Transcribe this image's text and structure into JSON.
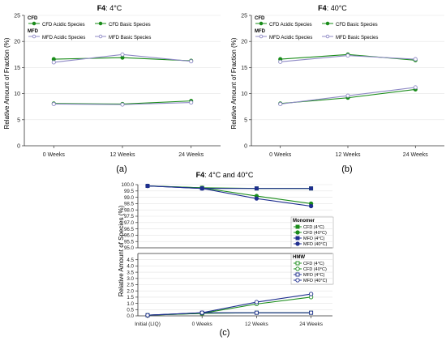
{
  "colors": {
    "green": "#1a8c1a",
    "navy": "#1f2f8f",
    "lavender": "#8f8ac6",
    "axis": "#333333",
    "grid": "#e3e3e3"
  },
  "chart_data": [
    {
      "type": "line",
      "title_bold": "F4",
      "title_rest": ": 4°C",
      "ylabel": "Relative Amount of Fraction (%)",
      "categories": [
        "0 Weeks",
        "12 Weeks",
        "24 Weeks"
      ],
      "ylim": [
        0,
        25
      ],
      "yticks": [
        "0",
        "5",
        "10",
        "15",
        "20",
        "25"
      ],
      "caption": "(a)",
      "legend_groups": [
        {
          "header": "CFD",
          "items": [
            "CFD Acidic Species",
            "CFD Basic Species"
          ]
        },
        {
          "header": "MFD",
          "items": [
            "MFD  Acidic Species",
            "MFD Basic Species"
          ]
        }
      ],
      "series": [
        {
          "name": "CFD Acidic Species",
          "values": [
            8.1,
            8.0,
            8.6
          ]
        },
        {
          "name": "CFD Basic Species",
          "values": [
            16.6,
            16.9,
            16.3
          ]
        },
        {
          "name": "MFD  Acidic Species",
          "values": [
            8.0,
            7.9,
            8.3
          ]
        },
        {
          "name": "MFD Basic Species",
          "values": [
            16.0,
            17.5,
            16.2
          ]
        }
      ]
    },
    {
      "type": "line",
      "title_bold": "F4",
      "title_rest": ": 40°C",
      "ylabel": "Relative Amount of Fraction (%)",
      "categories": [
        "0 Weeks",
        "12 Weeks",
        "24 Weeks"
      ],
      "ylim": [
        0,
        25
      ],
      "yticks": [
        "0",
        "5",
        "10",
        "15",
        "20",
        "25"
      ],
      "caption": "(b)",
      "legend_groups": [
        {
          "header": "CFD",
          "items": [
            "CFD Acidic Species",
            "CFD Basic Species"
          ]
        },
        {
          "header": "MFD",
          "items": [
            "MFD  Acidic Species",
            "MFD Basic Species"
          ]
        }
      ],
      "series": [
        {
          "name": "CFD Acidic Species",
          "values": [
            8.1,
            9.2,
            10.8
          ]
        },
        {
          "name": "CFD Basic Species",
          "values": [
            16.6,
            17.5,
            16.4
          ]
        },
        {
          "name": "MFD  Acidic Species",
          "values": [
            8.0,
            9.6,
            11.2
          ]
        },
        {
          "name": "MFD Basic Species",
          "values": [
            16.1,
            17.3,
            16.6
          ]
        }
      ]
    },
    {
      "type": "line",
      "title_bold": "F4",
      "title_rest": ": 4°C and 40°C",
      "ylabel": "Relative Amount of Species (%)",
      "categories": [
        "Initial (LIQ)",
        "0 Weeks",
        "12 Weeks",
        "24 Weeks"
      ],
      "caption": "(c)",
      "upper_panel": {
        "ylim": [
          95.0,
          100.0
        ],
        "yticks": [
          "95.0",
          "95.5",
          "96.0",
          "96.5",
          "97.0",
          "97.5",
          "98.0",
          "98.5",
          "99.0",
          "99.5",
          "100.0"
        ],
        "legend_header": "Monomer",
        "series": [
          {
            "name": "CFD (4°C)",
            "values": [
              99.9,
              99.75,
              99.7,
              99.7
            ]
          },
          {
            "name": "CFD (40°C)",
            "values": [
              99.9,
              99.75,
              99.1,
              98.5
            ]
          },
          {
            "name": "MFD (4°C)",
            "values": [
              99.9,
              99.7,
              99.7,
              99.7
            ]
          },
          {
            "name": "MFD (40°C)",
            "values": [
              99.9,
              99.7,
              98.9,
              98.3
            ]
          }
        ]
      },
      "lower_panel": {
        "ylim": [
          0.0,
          5.0
        ],
        "yticks": [
          "0.0",
          "0.5",
          "1.0",
          "1.5",
          "2.0",
          "2.5",
          "3.0",
          "3.5",
          "4.0",
          "4.5"
        ],
        "legend_header": "HMW",
        "series": [
          {
            "name": "CFD (4°C)",
            "values": [
              0.05,
              0.2,
              0.25,
              0.25
            ]
          },
          {
            "name": "CFD (40°C)",
            "values": [
              0.05,
              0.2,
              0.95,
              1.5
            ]
          },
          {
            "name": "MFD (4°C)",
            "values": [
              0.05,
              0.25,
              0.25,
              0.25
            ]
          },
          {
            "name": "MFD (40°C)",
            "values": [
              0.05,
              0.25,
              1.1,
              1.75
            ]
          }
        ]
      }
    }
  ]
}
